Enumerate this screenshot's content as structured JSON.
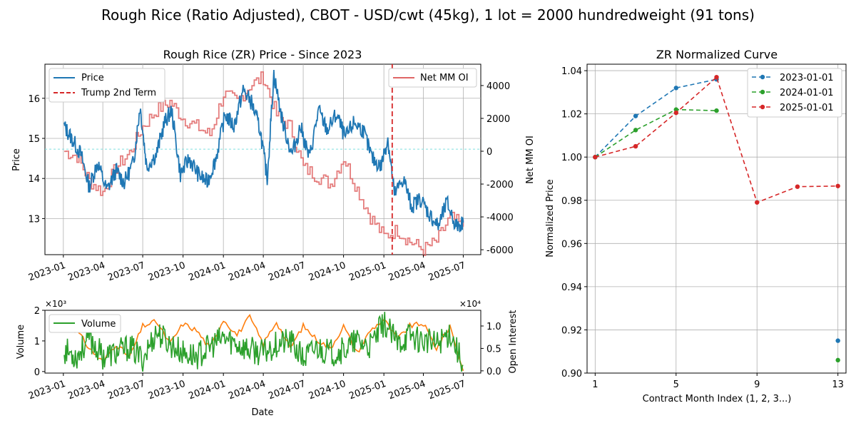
{
  "figure_title": "Rough Rice (Ratio Adjusted), CBOT - USD/cwt (45kg), 1 lot = 2000 hundredweight (91 tons)",
  "colors": {
    "price": "#1f77b4",
    "net_mm_oi": "#e377c2",
    "net_mm_oi_line": "#e06666",
    "trump": "#d62728",
    "volume": "#2ca02c",
    "open_interest": "#ff7f0e",
    "reference_line": "#7fdfdf",
    "grid": "#b0b0b0",
    "curve_2023": "#1f77b4",
    "curve_2024": "#2ca02c",
    "curve_2025": "#d62728"
  },
  "chart_data": [
    {
      "type": "line",
      "title": "Rough Rice (ZR) Price - Since 2023",
      "xlabel": "",
      "ylabel": "Price",
      "ylabel_right": "Net MM OI",
      "x_ticks": [
        "2023-01",
        "2023-04",
        "2023-07",
        "2023-10",
        "2024-01",
        "2024-04",
        "2024-07",
        "2024-10",
        "2025-01",
        "2025-04",
        "2025-07"
      ],
      "y_ticks": [
        13,
        14,
        15,
        16
      ],
      "y_ticks_right": [
        4000,
        2000,
        0,
        -2000,
        -4000,
        -6000
      ],
      "ylim": [
        12.1,
        16.85
      ],
      "ylim_right": [
        -6300,
        5300
      ],
      "grid": true,
      "legend_left": [
        "Price",
        "Trump 2nd Term"
      ],
      "legend_right": [
        "Net MM OI"
      ],
      "reference_line_price": 14.73,
      "trump_line_date": "2025-01-20",
      "series": [
        {
          "name": "Price",
          "x": [
            "2023-01-03",
            "2023-01-20",
            "2023-02-10",
            "2023-03-01",
            "2023-03-20",
            "2023-04-10",
            "2023-05-01",
            "2023-05-20",
            "2023-06-10",
            "2023-06-25",
            "2023-07-10",
            "2023-08-01",
            "2023-08-20",
            "2023-09-05",
            "2023-09-25",
            "2023-10-15",
            "2023-11-05",
            "2023-11-25",
            "2023-12-15",
            "2024-01-05",
            "2024-01-25",
            "2024-02-15",
            "2024-03-05",
            "2024-03-25",
            "2024-04-10",
            "2024-04-25",
            "2024-05-15",
            "2024-06-05",
            "2024-06-25",
            "2024-07-15",
            "2024-08-05",
            "2024-08-25",
            "2024-09-15",
            "2024-10-05",
            "2024-10-25",
            "2024-11-15",
            "2024-12-05",
            "2024-12-25",
            "2025-01-10",
            "2025-01-25",
            "2025-02-15",
            "2025-03-05",
            "2025-03-25",
            "2025-04-15",
            "2025-05-05",
            "2025-05-25",
            "2025-06-15",
            "2025-07-01"
          ],
          "values": [
            15.3,
            15.0,
            14.6,
            13.8,
            14.4,
            13.7,
            14.2,
            13.9,
            14.4,
            15.8,
            14.3,
            14.6,
            15.4,
            15.7,
            14.1,
            14.5,
            14.1,
            13.9,
            14.5,
            15.6,
            15.3,
            16.2,
            15.9,
            15.2,
            14.0,
            16.6,
            15.4,
            14.6,
            15.3,
            14.5,
            15.7,
            15.2,
            15.6,
            15.0,
            15.4,
            15.2,
            14.5,
            14.3,
            15.0,
            13.6,
            14.0,
            13.3,
            13.5,
            13.1,
            12.8,
            13.4,
            12.8,
            12.9
          ]
        },
        {
          "name": "Net MM OI",
          "x": [
            "2023-01-03",
            "2023-02-01",
            "2023-03-01",
            "2023-04-01",
            "2023-05-01",
            "2023-06-01",
            "2023-07-01",
            "2023-08-01",
            "2023-09-01",
            "2023-10-01",
            "2023-11-01",
            "2023-12-01",
            "2024-01-01",
            "2024-02-01",
            "2024-03-01",
            "2024-04-01",
            "2024-05-01",
            "2024-06-01",
            "2024-07-01",
            "2024-08-01",
            "2024-09-01",
            "2024-10-01",
            "2024-11-01",
            "2024-12-01",
            "2025-01-01",
            "2025-02-01",
            "2025-03-01",
            "2025-04-01",
            "2025-05-01",
            "2025-06-01",
            "2025-07-01"
          ],
          "values": [
            0,
            -300,
            -1800,
            -2500,
            -1000,
            -100,
            1500,
            2500,
            3000,
            2000,
            1500,
            1000,
            3500,
            3000,
            4000,
            4500,
            2200,
            1500,
            -1000,
            -1500,
            -2000,
            -400,
            -2300,
            -4000,
            -5200,
            -4800,
            -5500,
            -6000,
            -5500,
            -4000,
            -4600
          ]
        }
      ]
    },
    {
      "type": "line",
      "title": "",
      "xlabel": "Date",
      "ylabel": "Volume",
      "ylabel_right": "Open Interest",
      "y_multiplier": "×10³",
      "y_multiplier_right": "×10⁴",
      "x_ticks": [
        "2023-01",
        "2023-04",
        "2023-07",
        "2023-10",
        "2024-01",
        "2024-04",
        "2024-07",
        "2024-10",
        "2025-01",
        "2025-04",
        "2025-07"
      ],
      "y_ticks": [
        0,
        1,
        2
      ],
      "y_ticks_right": [
        "0.0",
        "0.5",
        "1.0"
      ],
      "ylim": [
        -0.05,
        2.0
      ],
      "ylim_right": [
        -0.05,
        1.35
      ],
      "grid": false,
      "legend": [
        "Volume"
      ],
      "series": [
        {
          "name": "Volume",
          "x": [
            "2023-01-03",
            "2023-02-01",
            "2023-03-01",
            "2023-04-01",
            "2023-05-01",
            "2023-06-01",
            "2023-07-01",
            "2023-08-01",
            "2023-09-01",
            "2023-10-01",
            "2023-11-01",
            "2023-12-01",
            "2024-01-01",
            "2024-02-01",
            "2024-03-01",
            "2024-04-01",
            "2024-05-01",
            "2024-06-01",
            "2024-07-01",
            "2024-08-01",
            "2024-09-01",
            "2024-10-01",
            "2024-11-01",
            "2024-12-01",
            "2025-01-01",
            "2025-02-01",
            "2025-03-01",
            "2025-04-01",
            "2025-05-01",
            "2025-06-01",
            "2025-07-01"
          ],
          "values": [
            0.7,
            0.5,
            1.1,
            0.5,
            0.6,
            0.8,
            0.4,
            1.3,
            0.9,
            0.6,
            0.5,
            0.8,
            1.1,
            0.9,
            0.7,
            0.6,
            0.9,
            1.0,
            0.4,
            0.8,
            0.6,
            0.7,
            1.0,
            0.8,
            1.6,
            0.9,
            1.2,
            1.0,
            0.9,
            1.3,
            0.2
          ]
        },
        {
          "name": "Open Interest",
          "x": [
            "2023-01-03",
            "2023-02-01",
            "2023-03-01",
            "2023-04-01",
            "2023-05-01",
            "2023-06-01",
            "2023-07-01",
            "2023-08-01",
            "2023-09-01",
            "2023-10-01",
            "2023-11-01",
            "2023-12-01",
            "2024-01-01",
            "2024-02-01",
            "2024-03-01",
            "2024-04-01",
            "2024-05-01",
            "2024-06-01",
            "2024-07-01",
            "2024-08-01",
            "2024-09-01",
            "2024-10-01",
            "2024-11-01",
            "2024-12-01",
            "2025-01-01",
            "2025-02-01",
            "2025-03-01",
            "2025-04-01",
            "2025-05-01",
            "2025-06-01",
            "2025-07-01"
          ],
          "values": [
            1.0,
            0.9,
            0.5,
            0.2,
            0.6,
            0.3,
            1.0,
            1.1,
            0.6,
            1.05,
            0.9,
            0.5,
            1.15,
            0.8,
            1.2,
            0.6,
            1.1,
            0.5,
            1.0,
            0.7,
            0.5,
            1.0,
            0.4,
            0.9,
            1.15,
            0.7,
            1.0,
            1.05,
            0.5,
            1.0,
            0.0
          ]
        }
      ]
    },
    {
      "type": "line",
      "title": "ZR Normalized Curve",
      "xlabel": "Contract Month Index (1, 2, 3...)",
      "ylabel": "Normalized Price",
      "x_ticks": [
        1,
        5,
        9,
        13
      ],
      "y_ticks": [
        "0.90",
        "0.92",
        "0.94",
        "0.96",
        "0.98",
        "1.00",
        "1.02",
        "1.04"
      ],
      "xlim": [
        0.6,
        13.4
      ],
      "ylim": [
        0.9,
        1.043
      ],
      "grid": true,
      "legend_position": "top-right",
      "series": [
        {
          "name": "2023-01-01",
          "x": [
            1,
            3,
            5,
            7
          ],
          "values": [
            1.0,
            1.019,
            1.032,
            1.036
          ],
          "extra_points": [
            [
              13,
              0.915
            ]
          ]
        },
        {
          "name": "2024-01-01",
          "x": [
            1,
            3,
            5,
            7
          ],
          "values": [
            1.0,
            1.0125,
            1.022,
            1.0215
          ],
          "extra_points": [
            [
              13,
              0.906
            ]
          ]
        },
        {
          "name": "2025-01-01",
          "x": [
            1,
            3,
            5,
            7,
            9,
            11,
            13
          ],
          "values": [
            1.0,
            1.005,
            1.0205,
            1.037,
            0.979,
            0.9863,
            0.9866
          ],
          "extra_points": []
        }
      ]
    }
  ]
}
